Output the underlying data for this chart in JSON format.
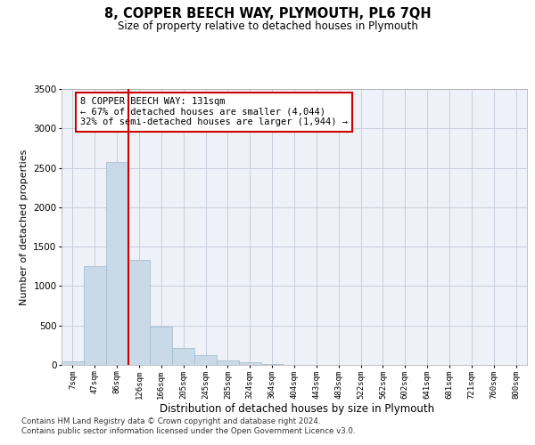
{
  "title": "8, COPPER BEECH WAY, PLYMOUTH, PL6 7QH",
  "subtitle": "Size of property relative to detached houses in Plymouth",
  "xlabel": "Distribution of detached houses by size in Plymouth",
  "ylabel": "Number of detached properties",
  "categories": [
    "7sqm",
    "47sqm",
    "86sqm",
    "126sqm",
    "166sqm",
    "205sqm",
    "245sqm",
    "285sqm",
    "324sqm",
    "364sqm",
    "404sqm",
    "443sqm",
    "483sqm",
    "522sqm",
    "562sqm",
    "602sqm",
    "641sqm",
    "681sqm",
    "721sqm",
    "760sqm",
    "800sqm"
  ],
  "values": [
    50,
    1250,
    2570,
    1330,
    490,
    210,
    120,
    60,
    30,
    10,
    5,
    3,
    2,
    0,
    0,
    0,
    0,
    0,
    0,
    0,
    0
  ],
  "bar_color": "#c9d9e8",
  "bar_edge_color": "#a0b8cc",
  "grid_color": "#c0c8d8",
  "background_color": "#eef2f8",
  "vline_color": "#cc0000",
  "vline_x_index": 2.5,
  "annotation_text": "8 COPPER BEECH WAY: 131sqm\n← 67% of detached houses are smaller (4,044)\n32% of semi-detached houses are larger (1,944) →",
  "annotation_box_edge": "#cc0000",
  "ylim": [
    0,
    3500
  ],
  "yticks": [
    0,
    500,
    1000,
    1500,
    2000,
    2500,
    3000,
    3500
  ],
  "footer1": "Contains HM Land Registry data © Crown copyright and database right 2024.",
  "footer2": "Contains public sector information licensed under the Open Government Licence v3.0."
}
